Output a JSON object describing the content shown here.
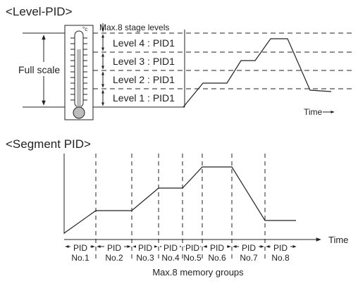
{
  "level_pid": {
    "title": "<Level-PID>",
    "max_label": "Max.8 stage levels",
    "full_scale_label": "Full scale",
    "degree_label": "°c",
    "levels": [
      {
        "name": "Level 4 : PID1"
      },
      {
        "name": "Level 3 : PID1"
      },
      {
        "name": "Level 2 : PID1"
      },
      {
        "name": "Level 1 : PID1"
      }
    ],
    "time_label": "Time"
  },
  "segment_pid": {
    "title": "<Segment PID>",
    "time_label": "Time",
    "memory_label": "Max.8 memory groups",
    "groups": [
      {
        "line1": "PID",
        "line2": "No.1"
      },
      {
        "line1": "PID",
        "line2": "No.2"
      },
      {
        "line1": "PID",
        "line2": "No.3"
      },
      {
        "line1": "PID",
        "line2": "No.4"
      },
      {
        "line1": "PID",
        "line2": "No.5"
      },
      {
        "line1": "PID",
        "line2": "No.6"
      },
      {
        "line1": "PID",
        "line2": "No.7"
      },
      {
        "line1": "PID",
        "line2": "No.8"
      }
    ]
  },
  "colors": {
    "line": "#222222",
    "bg": "#ffffff",
    "bulb": "#bdbdbd"
  }
}
